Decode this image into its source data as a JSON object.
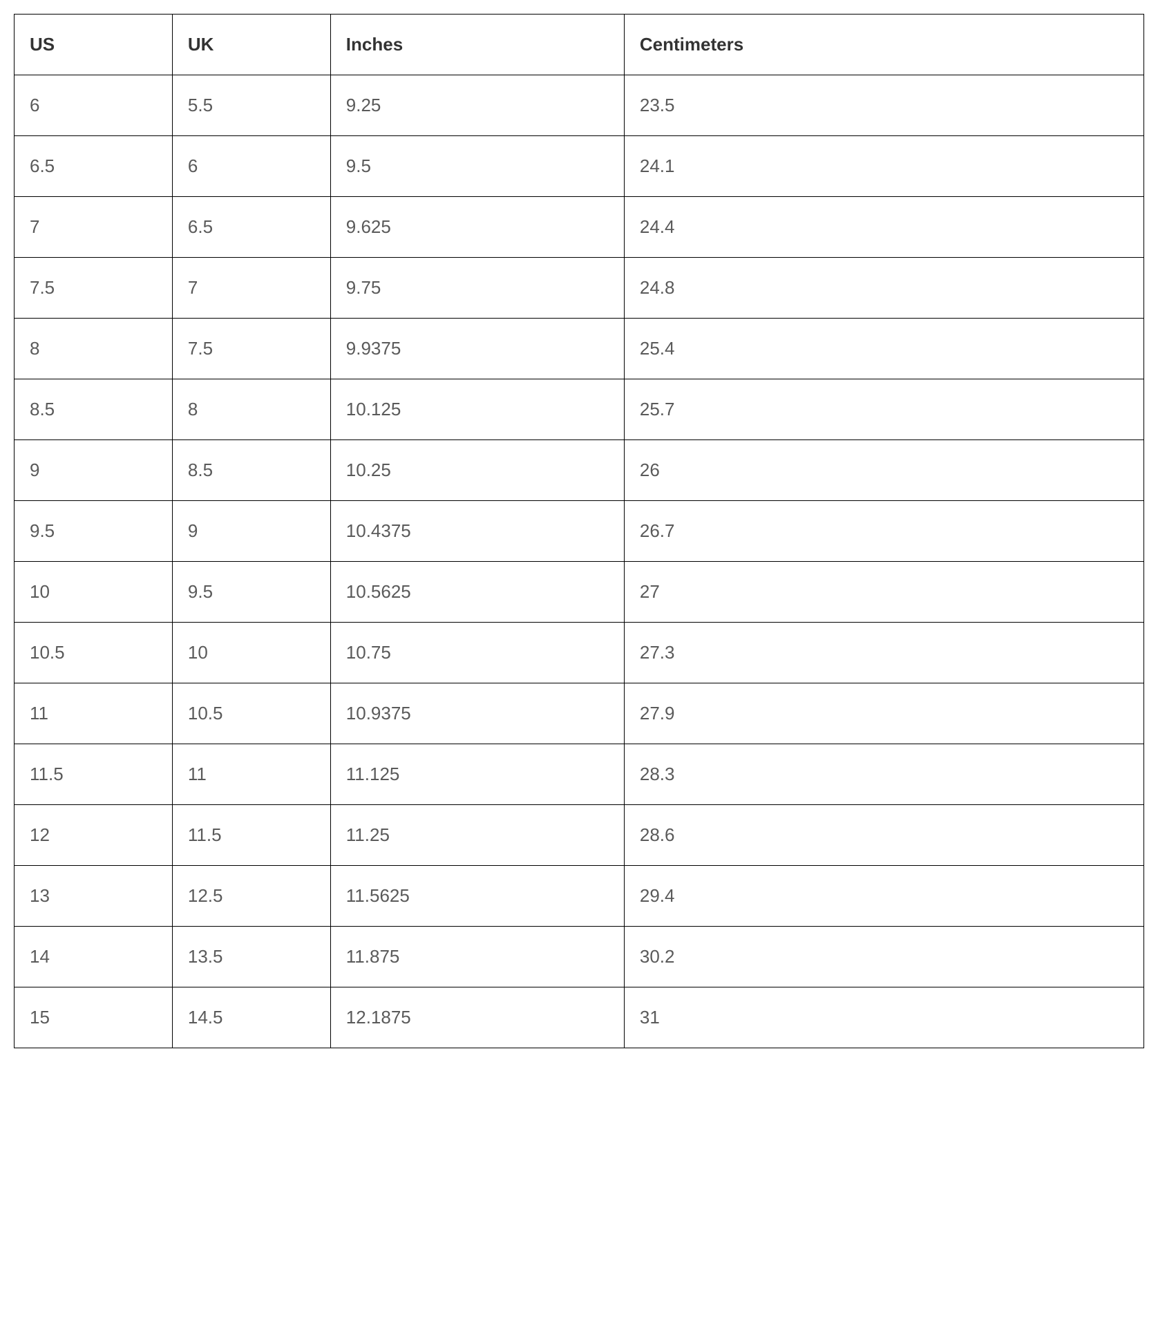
{
  "table": {
    "type": "table",
    "background_color": "#ffffff",
    "border_color": "#000000",
    "header_text_color": "#333333",
    "body_text_color": "#5a5a5a",
    "font_size": 26,
    "cell_padding_v": 28,
    "cell_padding_h": 22,
    "columns": [
      {
        "key": "us",
        "label": "US",
        "width_pct": 14
      },
      {
        "key": "uk",
        "label": "UK",
        "width_pct": 14
      },
      {
        "key": "inches",
        "label": "Inches",
        "width_pct": 26
      },
      {
        "key": "cm",
        "label": "Centimeters",
        "width_pct": 46
      }
    ],
    "rows": [
      [
        "6",
        "5.5",
        "9.25",
        "23.5"
      ],
      [
        "6.5",
        "6",
        "9.5",
        "24.1"
      ],
      [
        "7",
        "6.5",
        "9.625",
        "24.4"
      ],
      [
        "7.5",
        "7",
        "9.75",
        "24.8"
      ],
      [
        "8",
        "7.5",
        "9.9375",
        "25.4"
      ],
      [
        "8.5",
        "8",
        "10.125",
        "25.7"
      ],
      [
        "9",
        "8.5",
        "10.25",
        "26"
      ],
      [
        "9.5",
        "9",
        "10.4375",
        "26.7"
      ],
      [
        "10",
        "9.5",
        "10.5625",
        "27"
      ],
      [
        "10.5",
        "10",
        "10.75",
        "27.3"
      ],
      [
        "11",
        "10.5",
        "10.9375",
        "27.9"
      ],
      [
        "11.5",
        "11",
        "11.125",
        "28.3"
      ],
      [
        "12",
        "11.5",
        "11.25",
        "28.6"
      ],
      [
        "13",
        "12.5",
        "11.5625",
        "29.4"
      ],
      [
        "14",
        "13.5",
        "11.875",
        "30.2"
      ],
      [
        "15",
        "14.5",
        "12.1875",
        "31"
      ]
    ]
  }
}
